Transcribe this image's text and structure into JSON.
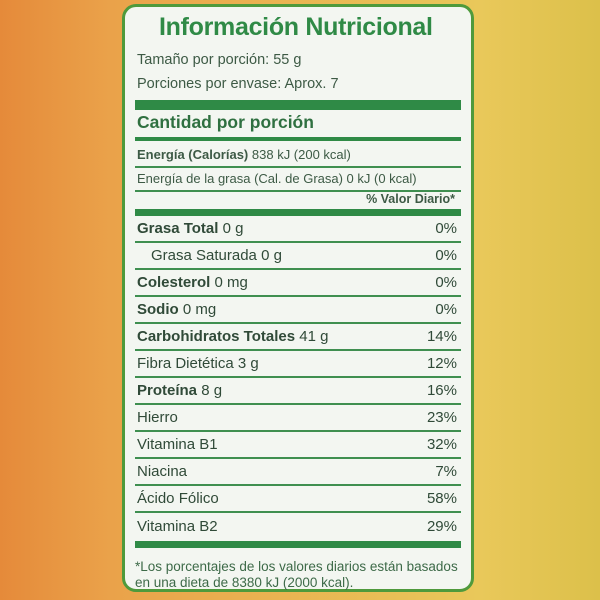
{
  "title": "Información Nutricional",
  "serving_size": "Tamaño por porción: 55 g",
  "servings_per_container": "Porciones por envase: Aprox. 7",
  "amount_per_serving": "Cantidad por porción",
  "energy_label": "Energía (Calorías)",
  "energy_value": "838 kJ (200 kcal)",
  "fat_energy": "Energía de la grasa (Cal. de Grasa) 0 kJ (0 kcal)",
  "daily_value_header": "% Valor Diario*",
  "rows": [
    {
      "label": "Grasa Total",
      "bold": true,
      "amount": "0 g",
      "dv": "0%"
    },
    {
      "label": "Grasa Saturada",
      "bold": false,
      "indent": true,
      "amount": "0 g",
      "dv": "0%"
    },
    {
      "label": "Colesterol",
      "bold": true,
      "amount": "0 mg",
      "dv": "0%"
    },
    {
      "label": "Sodio",
      "bold": true,
      "amount": "0 mg",
      "dv": "0%"
    },
    {
      "label": "Carbohidratos Totales",
      "bold": true,
      "amount": "41 g",
      "dv": "14%"
    },
    {
      "label": "Fibra Dietética",
      "bold": false,
      "amount": "3 g",
      "dv": "12%"
    },
    {
      "label": "Proteína",
      "bold": true,
      "amount": "8 g",
      "dv": "16%"
    },
    {
      "label": "Hierro",
      "bold": false,
      "amount": "",
      "dv": "23%"
    },
    {
      "label": "Vitamina B1",
      "bold": false,
      "amount": "",
      "dv": "32%"
    },
    {
      "label": "Niacina",
      "bold": false,
      "amount": "",
      "dv": "7%"
    },
    {
      "label": "Ácido Fólico",
      "bold": false,
      "amount": "",
      "dv": "58%"
    },
    {
      "label": "Vitamina B2",
      "bold": false,
      "amount": "",
      "dv": "29%"
    }
  ],
  "footnote": "*Los porcentajes de los valores diarios están basados en una dieta de 8380 kJ (2000 kcal).",
  "colors": {
    "green": "#2f8a46",
    "panel": "#f3f6f1",
    "package_orange": "#e58a3a",
    "package_yellow": "#e9c85a"
  }
}
